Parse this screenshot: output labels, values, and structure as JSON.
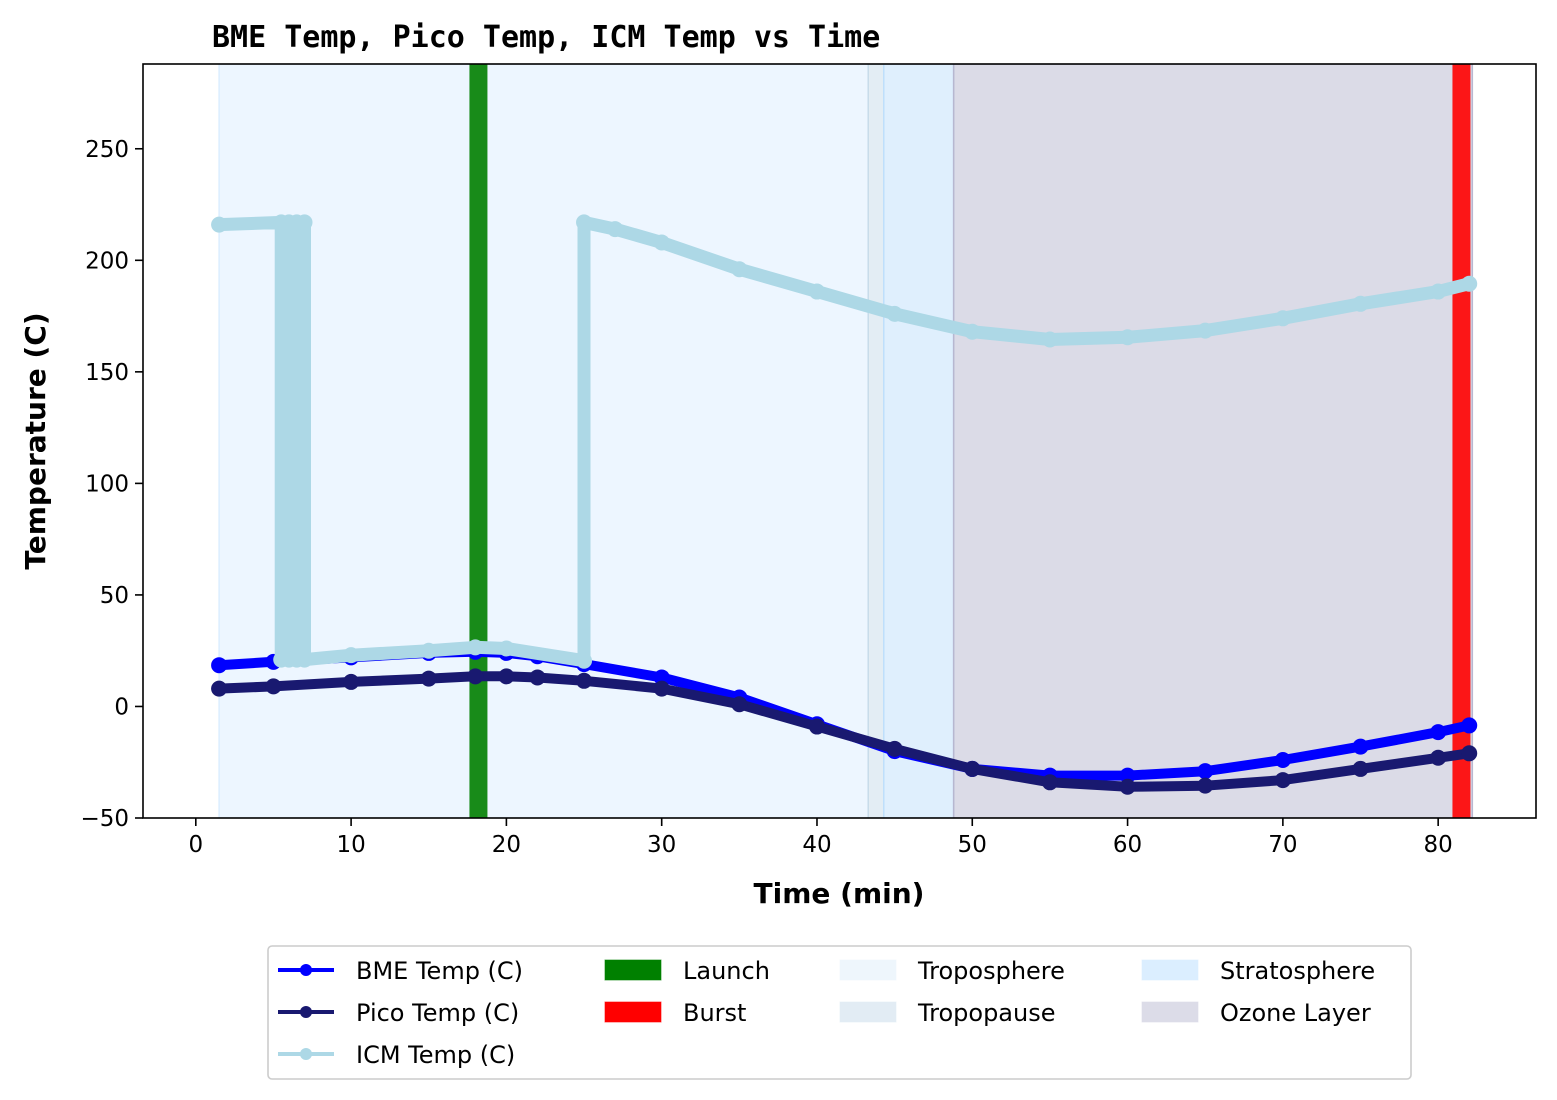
{
  "chart_data": {
    "type": "line",
    "title": "BME Temp, Pico Temp, ICM Temp vs Time",
    "xlabel": "Time (min)",
    "ylabel": "Temperature (C)",
    "xlim": [
      -3.4,
      86.3
    ],
    "ylim": [
      -50,
      288
    ],
    "xticks": [
      0,
      10,
      20,
      30,
      40,
      50,
      60,
      70,
      80
    ],
    "yticks": [
      -50,
      0,
      50,
      100,
      150,
      200,
      250
    ],
    "grid": false,
    "legend_position": "bottom-center outside",
    "regions": [
      {
        "name": "Troposphere",
        "x0": 1.5,
        "x1": 43.3,
        "color": "#dbeeff",
        "opacity": 0.5
      },
      {
        "name": "Tropopause",
        "x0": 43.3,
        "x1": 44.3,
        "color": "#c8dcea",
        "opacity": 0.5
      },
      {
        "name": "Stratosphere",
        "x0": 44.3,
        "x1": 48.8,
        "color": "#bfdffb",
        "opacity": 0.5
      },
      {
        "name": "Ozone Layer",
        "x0": 48.8,
        "x1": 82.2,
        "color": "#b7b7d0",
        "opacity": 0.5
      }
    ],
    "events": [
      {
        "name": "Launch",
        "x": 18.2,
        "color": "#008000"
      },
      {
        "name": "Burst",
        "x": 81.5,
        "color": "#ff0000"
      }
    ],
    "series": [
      {
        "name": "BME Temp (C)",
        "color": "#0000ff",
        "x": [
          1.5,
          5,
          10,
          15,
          18,
          20,
          22,
          25,
          30,
          35,
          40,
          45,
          50,
          55,
          60,
          65,
          70,
          75,
          80,
          82
        ],
        "y": [
          18.5,
          20,
          22,
          24,
          24.5,
          24,
          22.5,
          19,
          13,
          4,
          -8,
          -20,
          -28,
          -31,
          -31,
          -29,
          -24,
          -18,
          -11.5,
          -8.5
        ]
      },
      {
        "name": "Pico Temp (C)",
        "color": "#191970",
        "x": [
          1.5,
          5,
          10,
          15,
          18,
          20,
          22,
          25,
          30,
          35,
          40,
          45,
          50,
          55,
          60,
          65,
          70,
          75,
          80,
          82
        ],
        "y": [
          8,
          9,
          11,
          12.5,
          13.5,
          13.5,
          13,
          11.5,
          8,
          1,
          -9,
          -19,
          -28,
          -34,
          -36,
          -35.5,
          -33,
          -28,
          -23,
          -21
        ]
      },
      {
        "name": "ICM Temp (C)",
        "color": "#add8e6",
        "x": [
          1.5,
          5.5,
          5.5,
          6.0,
          6.0,
          6.5,
          6.5,
          7.0,
          7.0,
          10,
          15,
          18,
          20,
          25,
          25,
          27,
          30,
          35,
          40,
          45,
          50,
          55,
          60,
          65,
          70,
          75,
          80,
          82
        ],
        "y": [
          216,
          217,
          21,
          217,
          21,
          217,
          21,
          217,
          21,
          23,
          25,
          26.5,
          26,
          20.5,
          217,
          214,
          208,
          196,
          186,
          176,
          168,
          164.5,
          165.5,
          168.5,
          174,
          180.5,
          186,
          189.5
        ]
      }
    ],
    "legend": {
      "entries": [
        {
          "label": "BME Temp (C)",
          "kind": "line",
          "color": "#0000ff"
        },
        {
          "label": "Pico Temp (C)",
          "kind": "line",
          "color": "#191970"
        },
        {
          "label": "ICM Temp (C)",
          "kind": "line",
          "color": "#add8e6"
        },
        {
          "label": "Launch",
          "kind": "patch",
          "color": "#008000"
        },
        {
          "label": "Burst",
          "kind": "patch",
          "color": "#ff0000"
        },
        {
          "label": "Troposphere",
          "kind": "patch",
          "color": "#eef6fc"
        },
        {
          "label": "Tropopause",
          "kind": "patch",
          "color": "#e2ecf4"
        },
        {
          "label": "Stratosphere",
          "kind": "patch",
          "color": "#dbeeff"
        },
        {
          "label": "Ozone Layer",
          "kind": "patch",
          "color": "#dcdce8"
        }
      ]
    }
  }
}
